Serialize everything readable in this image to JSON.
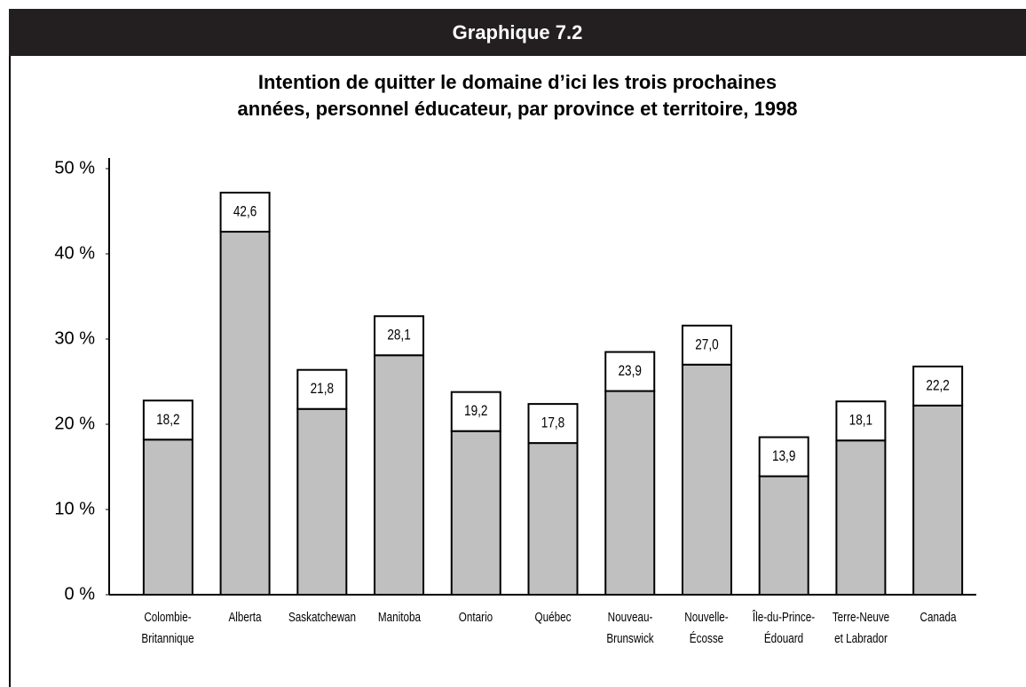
{
  "header": "Graphique 7.2",
  "chart_data": {
    "type": "bar",
    "title": "Intention de quitter le domaine d’ici les trois prochaines\nannées, personnel éducateur, par province et territoire, 1998",
    "categories": [
      "Colombie-\nBritannique",
      "Alberta",
      "Saskatchewan",
      "Manitoba",
      "Ontario",
      "Québec",
      "Nouveau-\nBrunswick",
      "Nouvelle-\nÉcosse",
      "Île-du-Prince-\nÉdouard",
      "Terre-Neuve\net Labrador",
      "Canada"
    ],
    "values": [
      18.2,
      42.6,
      21.8,
      28.1,
      19.2,
      17.8,
      23.9,
      27.0,
      13.9,
      18.1,
      22.2
    ],
    "value_labels": [
      "18,2",
      "42,6",
      "21,8",
      "28,1",
      "19,2",
      "17,8",
      "23,9",
      "27,0",
      "13,9",
      "18,1",
      "22,2"
    ],
    "color": "#c0c0c0",
    "ylim": [
      0,
      50
    ],
    "yticks": [
      {
        "value": 0,
        "label": "0 %"
      },
      {
        "value": 10,
        "label": "10 %"
      },
      {
        "value": 20,
        "label": "20 %"
      },
      {
        "value": 30,
        "label": "30 %"
      },
      {
        "value": 40,
        "label": "40 %"
      },
      {
        "value": 50,
        "label": "50 %"
      }
    ],
    "grid": false
  }
}
